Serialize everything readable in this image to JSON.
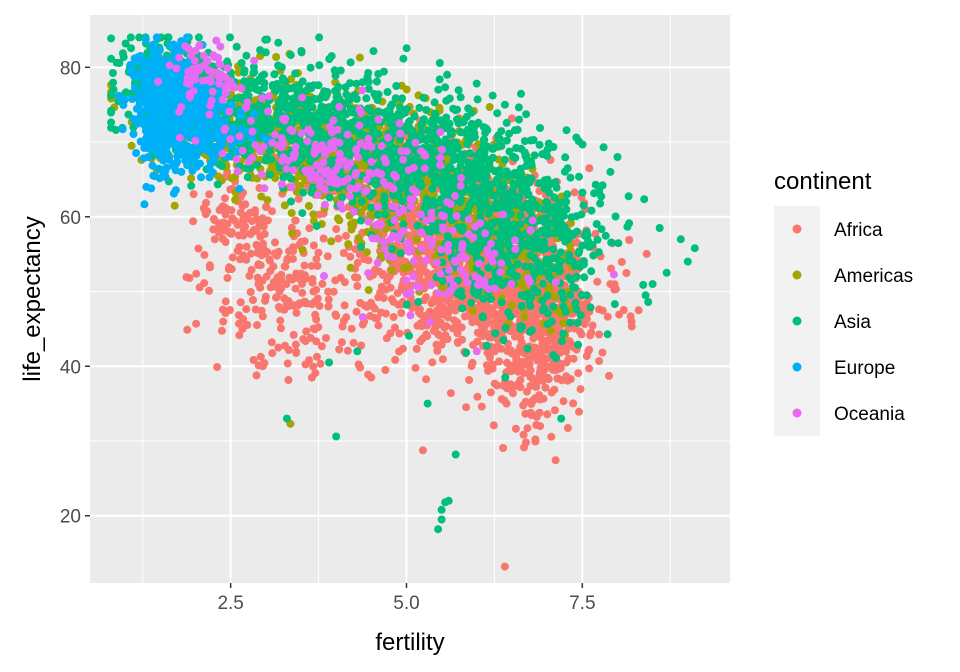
{
  "chart_data": {
    "type": "scatter",
    "title": "",
    "xlabel": "fertility",
    "ylabel": "life_expectancy",
    "xlim": [
      0.5,
      9.6
    ],
    "ylim": [
      11,
      87
    ],
    "x_ticks": [
      2.5,
      5.0,
      7.5
    ],
    "x_tick_labels": [
      "2.5",
      "5.0",
      "7.5"
    ],
    "y_ticks": [
      20,
      40,
      60,
      80
    ],
    "y_tick_labels": [
      "20",
      "40",
      "60",
      "80"
    ],
    "grid": true,
    "legend": {
      "title": "continent",
      "placement": "right",
      "entries": [
        "Africa",
        "Americas",
        "Asia",
        "Europe",
        "Oceania"
      ]
    },
    "colors": {
      "Africa": "#F8766D",
      "Americas": "#A3A500",
      "Asia": "#00BF7D",
      "Europe": "#00B0F6",
      "Oceania": "#E76BF3",
      "panel": "#EBEBEB",
      "grid": "#FFFFFF"
    },
    "series": [
      {
        "name": "Africa",
        "clusters": [
          {
            "cx": 6.0,
            "cy": 54,
            "sx": 0.75,
            "sy": 6,
            "n": 1400
          },
          {
            "cx": 6.8,
            "cy": 46,
            "sx": 0.4,
            "sy": 7,
            "n": 450
          },
          {
            "cx": 4.6,
            "cy": 66,
            "sx": 0.6,
            "sy": 3,
            "n": 350
          },
          {
            "cx": 3.4,
            "cy": 49,
            "sx": 0.6,
            "sy": 5,
            "n": 220
          },
          {
            "cx": 2.6,
            "cy": 60,
            "sx": 0.3,
            "sy": 3,
            "n": 90
          }
        ],
        "outliers": [
          [
            6.4,
            13.2
          ],
          [
            6.7,
            29.8
          ],
          [
            6.9,
            32.0
          ],
          [
            6.2,
            36.5
          ],
          [
            8.2,
            46.0
          ],
          [
            8.3,
            47.5
          ],
          [
            7.9,
            51.0
          ],
          [
            7.6,
            66.5
          ],
          [
            5.0,
            74.0
          ],
          [
            4.4,
            71.5
          ],
          [
            4.5,
            38.5
          ],
          [
            4.7,
            39.5
          ]
        ]
      },
      {
        "name": "Americas",
        "clusters": [
          {
            "cx": 3.2,
            "cy": 71,
            "sx": 0.9,
            "sy": 4,
            "n": 550
          },
          {
            "cx": 5.2,
            "cy": 63,
            "sx": 0.9,
            "sy": 5,
            "n": 350
          },
          {
            "cx": 6.6,
            "cy": 55,
            "sx": 0.5,
            "sy": 4,
            "n": 120
          }
        ],
        "outliers": [
          [
            3.35,
            32.3
          ],
          [
            7.2,
            47.0
          ],
          [
            7.3,
            50.0
          ]
        ]
      },
      {
        "name": "Asia",
        "clusters": [
          {
            "cx": 3.3,
            "cy": 73,
            "sx": 1.1,
            "sy": 4,
            "n": 700
          },
          {
            "cx": 5.6,
            "cy": 66,
            "sx": 0.9,
            "sy": 5,
            "n": 600
          },
          {
            "cx": 6.6,
            "cy": 56,
            "sx": 0.6,
            "sy": 6,
            "n": 400
          },
          {
            "cx": 1.6,
            "cy": 79,
            "sx": 0.35,
            "sy": 2.5,
            "n": 200
          }
        ],
        "outliers": [
          [
            5.45,
            18.2
          ],
          [
            5.5,
            19.5
          ],
          [
            5.5,
            20.8
          ],
          [
            5.55,
            21.8
          ],
          [
            5.6,
            22.0
          ],
          [
            5.7,
            28.2
          ],
          [
            4.0,
            30.6
          ],
          [
            3.3,
            33.0
          ],
          [
            5.3,
            35.0
          ],
          [
            7.2,
            33.0
          ],
          [
            9.0,
            54.0
          ],
          [
            9.1,
            55.8
          ],
          [
            8.9,
            57.0
          ],
          [
            8.6,
            58.5
          ],
          [
            8.4,
            49.5
          ],
          [
            8.5,
            51.0
          ],
          [
            8.7,
            52.5
          ],
          [
            8.0,
            68.0
          ],
          [
            7.9,
            66.0
          ],
          [
            4.3,
            42.0
          ],
          [
            3.9,
            40.5
          ],
          [
            3.0,
            82.0
          ],
          [
            1.2,
            84.0
          ],
          [
            6.4,
            75.0
          ],
          [
            6.6,
            73.0
          ]
        ]
      },
      {
        "name": "Europe",
        "clusters": [
          {
            "cx": 1.55,
            "cy": 74,
            "sx": 0.22,
            "sy": 4,
            "n": 500
          },
          {
            "cx": 2.0,
            "cy": 73,
            "sx": 0.35,
            "sy": 3,
            "n": 250
          }
        ],
        "outliers": [
          [
            2.1,
            83.0
          ],
          [
            1.7,
            82.5
          ],
          [
            1.3,
            64.0
          ],
          [
            1.4,
            65.5
          ],
          [
            1.8,
            66.0
          ]
        ]
      },
      {
        "name": "Oceania",
        "clusters": [
          {
            "cx": 3.8,
            "cy": 68,
            "sx": 0.8,
            "sy": 3,
            "n": 160
          },
          {
            "cx": 5.4,
            "cy": 56,
            "sx": 0.7,
            "sy": 4,
            "n": 120
          },
          {
            "cx": 2.2,
            "cy": 79,
            "sx": 0.3,
            "sy": 2,
            "n": 60
          }
        ],
        "outliers": [
          [
            1.9,
            82.5
          ],
          [
            5.1,
            52.0
          ],
          [
            5.0,
            51.5
          ],
          [
            4.6,
            73.0
          ],
          [
            4.9,
            72.5
          ],
          [
            6.0,
            42.0
          ]
        ]
      }
    ]
  }
}
